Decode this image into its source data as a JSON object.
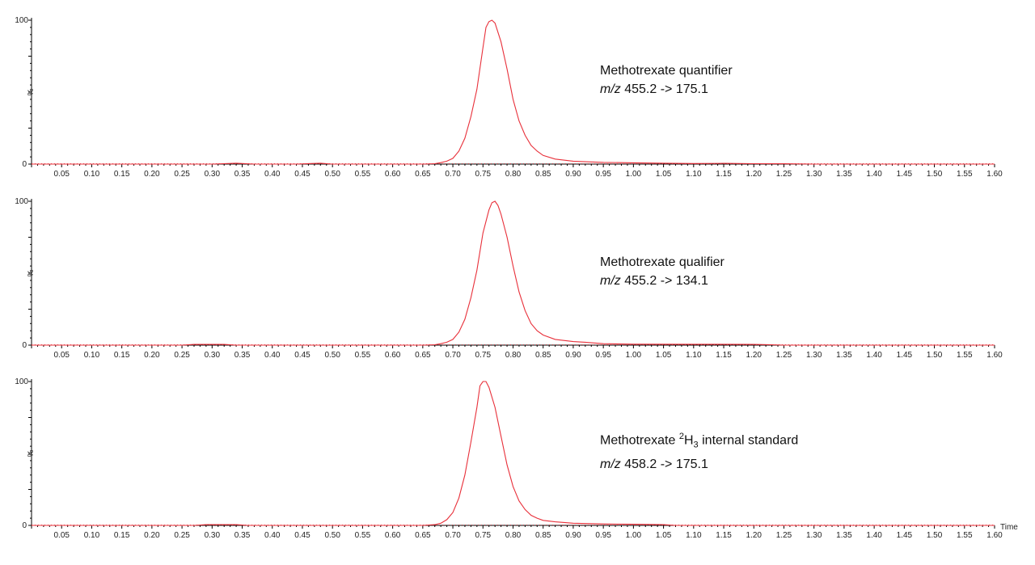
{
  "x_axis_title": "Time",
  "colors": {
    "trace": "#e8303a",
    "axis": "#000000",
    "baseline_dots": "#e8303a"
  },
  "chart_data": [
    {
      "type": "line",
      "label_line1": "Methotrexate quantifier",
      "mz_prefix": "m/z",
      "mz_value": "455.2 -> 175.1",
      "y_percent_label": "%",
      "ytick_top": "100",
      "ytick_bottom": "0",
      "xlim": [
        0.0,
        1.6
      ],
      "ylim": [
        0,
        100
      ],
      "xtick_labels": [
        "0.05",
        "0.10",
        "0.15",
        "0.20",
        "0.25",
        "0.30",
        "0.35",
        "0.40",
        "0.45",
        "0.50",
        "0.55",
        "0.60",
        "0.65",
        "0.70",
        "0.75",
        "0.80",
        "0.85",
        "0.90",
        "0.95",
        "1.00",
        "1.05",
        "1.10",
        "1.15",
        "1.20",
        "1.25",
        "1.30",
        "1.35",
        "1.40",
        "1.45",
        "1.50",
        "1.55",
        "1.60"
      ],
      "x": [
        0.0,
        0.3,
        0.34,
        0.37,
        0.44,
        0.48,
        0.5,
        0.65,
        0.67,
        0.68,
        0.69,
        0.7,
        0.71,
        0.72,
        0.73,
        0.74,
        0.75,
        0.755,
        0.76,
        0.765,
        0.77,
        0.78,
        0.79,
        0.8,
        0.81,
        0.82,
        0.83,
        0.84,
        0.85,
        0.87,
        0.9,
        0.95,
        1.0,
        1.05,
        1.1,
        1.15,
        1.2,
        1.25,
        1.3,
        1.6
      ],
      "y": [
        0,
        0,
        0.6,
        0,
        0,
        0.6,
        0,
        0,
        0.3,
        1,
        2,
        4,
        9,
        18,
        33,
        52,
        81,
        95,
        99,
        100,
        98,
        85,
        66,
        45,
        30,
        20,
        13,
        9,
        6,
        3.5,
        2,
        1.2,
        0.9,
        0.6,
        0.4,
        0.5,
        0.3,
        0.2,
        0,
        0
      ]
    },
    {
      "type": "line",
      "label_line1": "Methotrexate qualifier",
      "mz_prefix": "m/z",
      "mz_value": "455.2 -> 134.1",
      "y_percent_label": "%",
      "ytick_top": "100",
      "ytick_bottom": "0",
      "xlim": [
        0.0,
        1.6
      ],
      "ylim": [
        0,
        100
      ],
      "xtick_labels": [
        "0.05",
        "0.10",
        "0.15",
        "0.20",
        "0.25",
        "0.30",
        "0.35",
        "0.40",
        "0.45",
        "0.50",
        "0.55",
        "0.60",
        "0.65",
        "0.70",
        "0.75",
        "0.80",
        "0.85",
        "0.90",
        "0.95",
        "1.00",
        "1.05",
        "1.10",
        "1.15",
        "1.20",
        "1.25",
        "1.30",
        "1.35",
        "1.40",
        "1.45",
        "1.50",
        "1.55",
        "1.60"
      ],
      "x": [
        0.0,
        0.25,
        0.27,
        0.32,
        0.34,
        0.65,
        0.67,
        0.68,
        0.69,
        0.7,
        0.71,
        0.72,
        0.73,
        0.74,
        0.75,
        0.76,
        0.765,
        0.77,
        0.775,
        0.78,
        0.79,
        0.8,
        0.81,
        0.82,
        0.83,
        0.84,
        0.85,
        0.87,
        0.9,
        0.92,
        0.95,
        1.0,
        1.1,
        1.2,
        1.23,
        1.25,
        1.6
      ],
      "y": [
        0,
        0,
        0.5,
        0.5,
        0,
        0,
        0.3,
        1,
        2,
        4,
        9,
        18,
        33,
        52,
        78,
        94,
        99,
        100,
        97,
        91,
        75,
        55,
        37,
        24,
        15,
        10,
        7,
        4,
        2.5,
        2,
        1,
        0.7,
        0.6,
        0.5,
        0.3,
        0,
        0
      ]
    },
    {
      "type": "line",
      "label_line1": "Methotrexate",
      "label_sup": "2",
      "label_h": "H",
      "label_sub": "3",
      "label_line1_suffix": "internal standard",
      "mz_prefix": "m/z",
      "mz_value": "458.2 -> 175.1",
      "y_percent_label": "%",
      "ytick_top": "100",
      "ytick_bottom": "0",
      "xlim": [
        0.0,
        1.6
      ],
      "ylim": [
        0,
        100
      ],
      "xtick_labels": [
        "0.05",
        "0.10",
        "0.15",
        "0.20",
        "0.25",
        "0.30",
        "0.35",
        "0.40",
        "0.45",
        "0.50",
        "0.55",
        "0.60",
        "0.65",
        "0.70",
        "0.75",
        "0.80",
        "0.85",
        "0.90",
        "0.95",
        "1.00",
        "1.05",
        "1.10",
        "1.15",
        "1.20",
        "1.25",
        "1.30",
        "1.35",
        "1.40",
        "1.45",
        "1.50",
        "1.55",
        "1.60"
      ],
      "x": [
        0.0,
        0.27,
        0.29,
        0.34,
        0.36,
        0.65,
        0.67,
        0.68,
        0.69,
        0.7,
        0.71,
        0.72,
        0.73,
        0.74,
        0.745,
        0.75,
        0.755,
        0.76,
        0.77,
        0.78,
        0.79,
        0.8,
        0.81,
        0.82,
        0.83,
        0.84,
        0.85,
        0.87,
        0.9,
        0.95,
        1.0,
        1.05,
        1.07,
        1.6
      ],
      "y": [
        0,
        0,
        0.5,
        0.5,
        0,
        0,
        0.5,
        1.5,
        4,
        9,
        19,
        35,
        58,
        82,
        97,
        100,
        100,
        96,
        82,
        62,
        42,
        27,
        17,
        11,
        7,
        5,
        3.5,
        2.5,
        1.5,
        1,
        0.8,
        0.5,
        0,
        0
      ]
    }
  ]
}
